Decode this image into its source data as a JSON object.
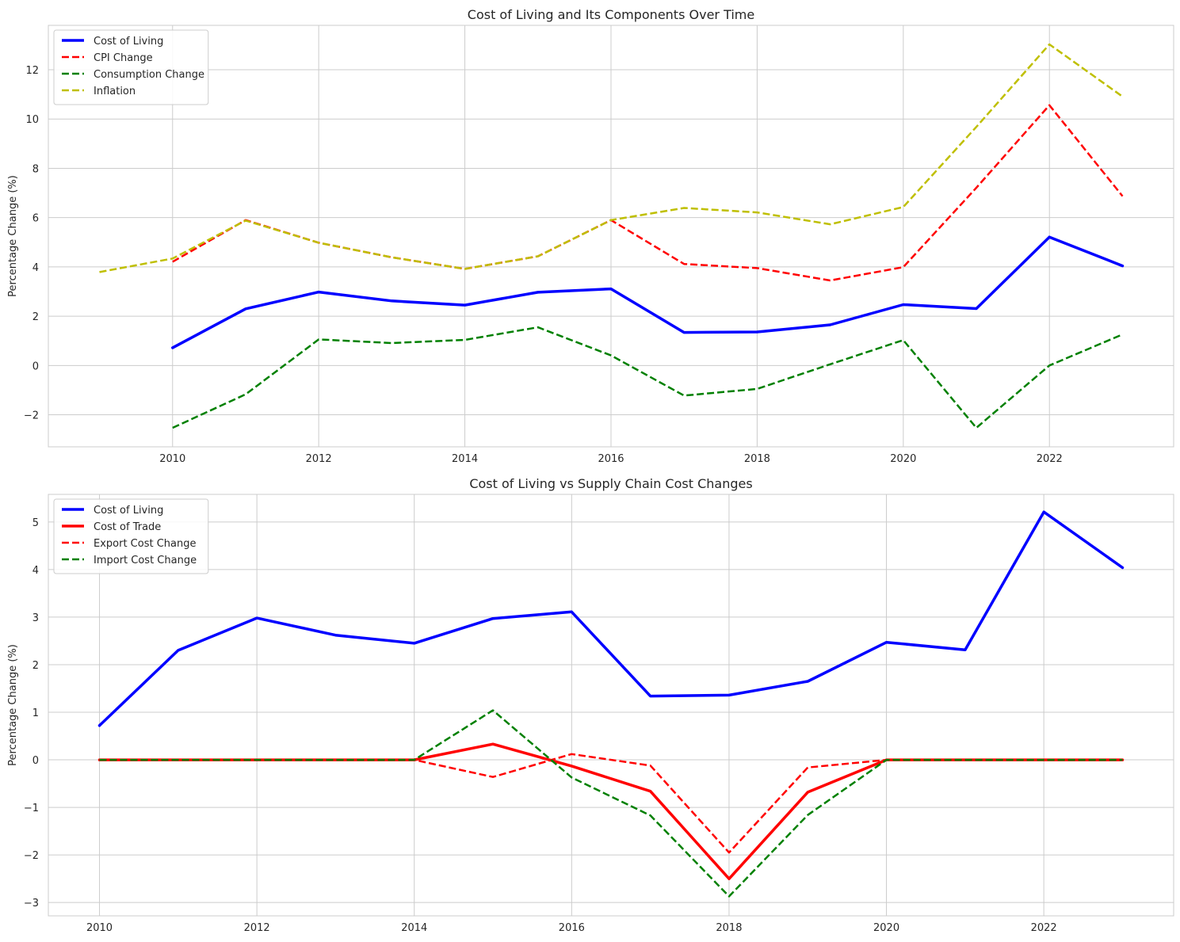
{
  "chart_data": [
    {
      "type": "line",
      "title": "Cost of Living and Its Components Over Time",
      "xlabel": "",
      "ylabel": "Percentage Change (%)",
      "xlim": [
        2008.3,
        2023.7
      ],
      "ylim": [
        -3.3,
        13.8
      ],
      "xticks": [
        2010,
        2012,
        2014,
        2016,
        2018,
        2020,
        2022
      ],
      "yticks": [
        -2,
        0,
        2,
        4,
        6,
        8,
        10,
        12
      ],
      "legend_position": "top-left",
      "grid": true,
      "series": [
        {
          "name": "Cost of Living",
          "color": "#0000ff",
          "style": "solid",
          "width": 3.5,
          "x": [
            2010,
            2011,
            2012,
            2013,
            2014,
            2015,
            2016,
            2017,
            2018,
            2019,
            2020,
            2021,
            2022,
            2023
          ],
          "y": [
            0.72,
            2.3,
            2.98,
            2.62,
            2.45,
            2.97,
            3.11,
            1.34,
            1.36,
            1.65,
            2.47,
            2.31,
            5.21,
            4.04
          ]
        },
        {
          "name": "CPI Change",
          "color": "#ff0000",
          "style": "dashed",
          "width": 2.5,
          "x": [
            2010,
            2011,
            2012,
            2013,
            2014,
            2015,
            2016,
            2017,
            2018,
            2019,
            2020,
            2021,
            2022,
            2023
          ],
          "y": [
            4.21,
            5.9,
            4.98,
            4.39,
            3.92,
            4.43,
            5.9,
            4.12,
            3.95,
            3.45,
            3.99,
            7.21,
            10.56,
            6.87
          ]
        },
        {
          "name": "Consumption Change",
          "color": "#008000",
          "style": "dashed",
          "width": 2.5,
          "x": [
            2010,
            2011,
            2012,
            2013,
            2014,
            2015,
            2016,
            2017,
            2018,
            2019,
            2020,
            2021,
            2022,
            2023
          ],
          "y": [
            -2.53,
            -1.17,
            1.06,
            0.91,
            1.04,
            1.55,
            0.41,
            -1.22,
            -0.95,
            0.05,
            1.03,
            -2.53,
            0.0,
            1.26
          ]
        },
        {
          "name": "Inflation",
          "color": "#bfbf00",
          "style": "dashed",
          "width": 2.5,
          "x": [
            2009,
            2010,
            2011,
            2012,
            2013,
            2014,
            2015,
            2016,
            2017,
            2018,
            2019,
            2020,
            2021,
            2022,
            2023
          ],
          "y": [
            3.79,
            4.34,
            5.88,
            4.98,
            4.39,
            3.92,
            4.43,
            5.9,
            6.39,
            6.21,
            5.73,
            6.43,
            9.68,
            13.03,
            10.91
          ]
        }
      ]
    },
    {
      "type": "line",
      "title": "Cost of Living vs Supply Chain Cost Changes",
      "xlabel": "",
      "ylabel": "Percentage Change (%)",
      "xlim": [
        2009.35,
        2023.65
      ],
      "ylim": [
        -3.28,
        5.58
      ],
      "xticks": [
        2010,
        2012,
        2014,
        2016,
        2018,
        2020,
        2022
      ],
      "yticks": [
        -3,
        -2,
        -1,
        0,
        1,
        2,
        3,
        4,
        5
      ],
      "legend_position": "top-left",
      "grid": true,
      "series": [
        {
          "name": "Cost of Living",
          "color": "#0000ff",
          "style": "solid",
          "width": 3.5,
          "x": [
            2010,
            2011,
            2012,
            2013,
            2014,
            2015,
            2016,
            2017,
            2018,
            2019,
            2020,
            2021,
            2022,
            2023
          ],
          "y": [
            0.72,
            2.3,
            2.98,
            2.62,
            2.45,
            2.97,
            3.11,
            1.34,
            1.36,
            1.65,
            2.47,
            2.31,
            5.21,
            4.04
          ]
        },
        {
          "name": "Cost of Trade",
          "color": "#ff0000",
          "style": "solid",
          "width": 3.5,
          "x": [
            2010,
            2011,
            2012,
            2013,
            2014,
            2015,
            2016,
            2017,
            2018,
            2019,
            2020,
            2021,
            2022,
            2023
          ],
          "y": [
            0,
            0,
            0,
            0,
            0,
            0.33,
            -0.13,
            -0.66,
            -2.5,
            -0.68,
            0,
            0,
            0,
            0
          ]
        },
        {
          "name": "Export Cost Change",
          "color": "#ff0000",
          "style": "dashed",
          "width": 2.5,
          "x": [
            2010,
            2011,
            2012,
            2013,
            2014,
            2015,
            2016,
            2017,
            2018,
            2019,
            2020,
            2021,
            2022,
            2023
          ],
          "y": [
            0,
            0,
            0,
            0,
            0,
            -0.36,
            0.12,
            -0.12,
            -1.95,
            -0.16,
            0,
            0,
            0,
            0
          ]
        },
        {
          "name": "Import Cost Change",
          "color": "#008000",
          "style": "dashed",
          "width": 2.5,
          "x": [
            2010,
            2011,
            2012,
            2013,
            2014,
            2015,
            2016,
            2017,
            2018,
            2019,
            2020,
            2021,
            2022,
            2023
          ],
          "y": [
            0,
            0,
            0,
            0,
            0,
            1.04,
            -0.37,
            -1.17,
            -2.87,
            -1.16,
            0,
            0,
            0,
            0
          ]
        }
      ]
    }
  ]
}
